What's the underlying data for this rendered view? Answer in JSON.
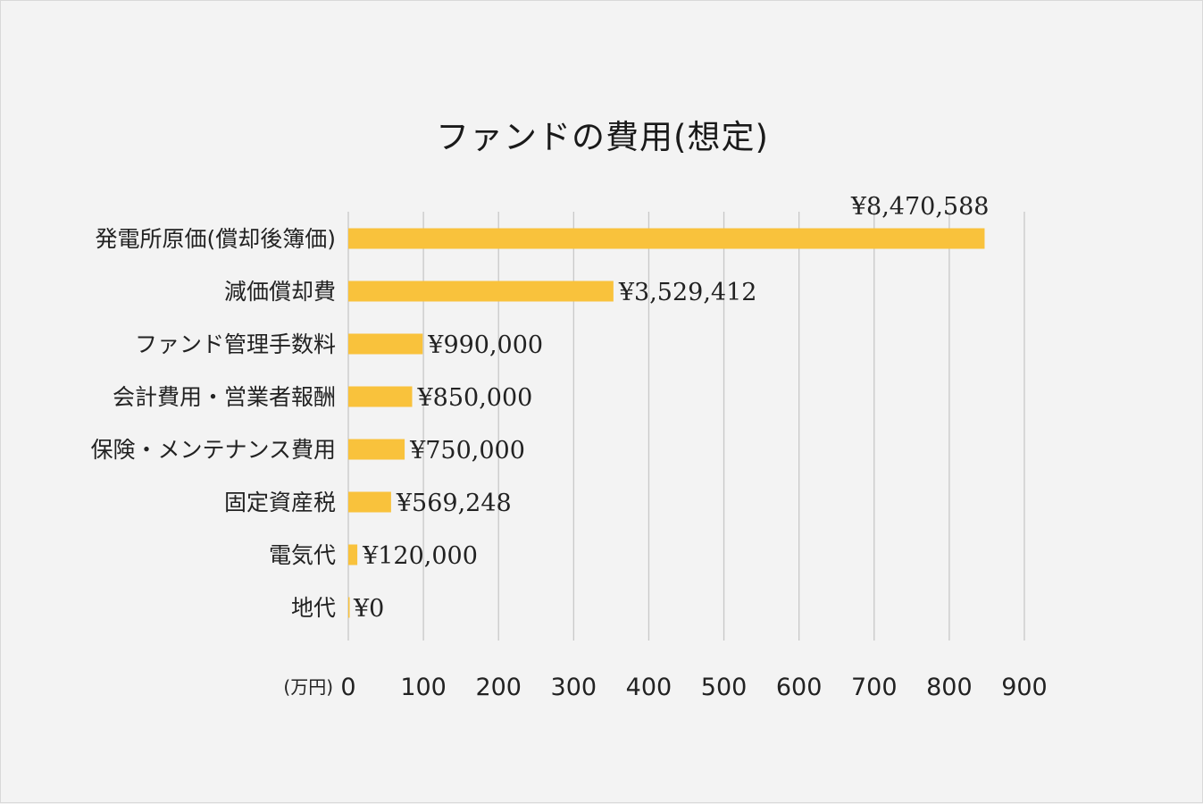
{
  "chart_data": {
    "type": "bar",
    "orientation": "horizontal",
    "title": "ファンドの費用(想定)",
    "x_unit_label": "(万円)",
    "xlim": [
      0,
      900
    ],
    "x_ticks": [
      0,
      100,
      200,
      300,
      400,
      500,
      600,
      700,
      800,
      900
    ],
    "grid": true,
    "categories": [
      "発電所原価(償却後簿価)",
      "減価償却費",
      "ファンド管理手数料",
      "会計費用・営業者報酬",
      "保険・メンテナンス費用",
      "固定資産税",
      "電気代",
      "地代"
    ],
    "values": [
      847.0588,
      352.9412,
      99.0,
      85.0,
      75.0,
      56.9248,
      12.0,
      0
    ],
    "value_labels": [
      "¥8,470,588",
      "¥3,529,412",
      "¥990,000",
      "¥850,000",
      "¥750,000",
      "¥569,248",
      "¥120,000",
      "¥0"
    ],
    "bar_color": "#f9c23c",
    "grid_color": "#c8c8c8"
  }
}
